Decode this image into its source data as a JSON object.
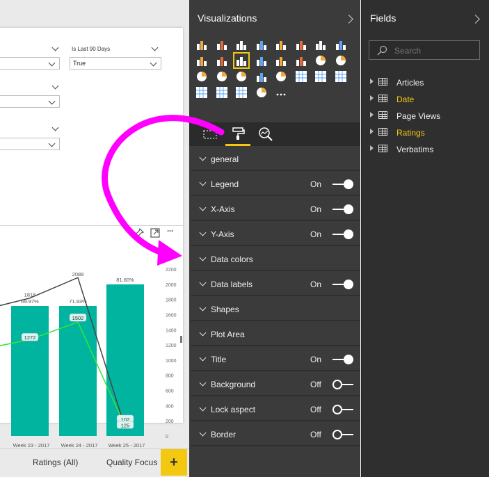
{
  "canvas": {
    "slicers": [
      {
        "label": "",
        "value": ""
      },
      {
        "label": "Is Last 90 Days",
        "value": "True"
      },
      {
        "label": "",
        "value": ""
      },
      {
        "label": "",
        "value": ""
      }
    ],
    "header_icons": [
      "pin-icon",
      "focus-mode-icon",
      "more-options-icon"
    ],
    "more_glyph": "···"
  },
  "chart_data": {
    "type": "bar",
    "categories": [
      "Week 23 - 2017",
      "Week 24 - 2017",
      "Week 25 - 2017"
    ],
    "series": [
      {
        "kind": "bar",
        "values": [
          1818,
          2088,
          102
        ],
        "data_labels": [
          "69.97%",
          "71.93%",
          "81.60%"
        ],
        "color": "#00b4a0"
      },
      {
        "kind": "line",
        "values": [
          1818,
          2088,
          102
        ],
        "data_labels": [
          "1818",
          "2088",
          "102"
        ],
        "color": "#444444"
      },
      {
        "kind": "line",
        "values": [
          1272,
          1502,
          125
        ],
        "data_labels": [
          "1272",
          "1502",
          "125"
        ],
        "color": "#33e833"
      }
    ],
    "y_axis": {
      "min": 0,
      "max": 2200,
      "ticks": [
        "2200",
        "2000",
        "1800",
        "1600",
        "1400",
        "1200",
        "1000",
        "800",
        "600",
        "400",
        "200",
        "0"
      ]
    }
  },
  "tabs": [
    "Ratings (All)",
    "Quality Focus"
  ],
  "add_page_label": "+",
  "visualizations": {
    "title": "Visualizations",
    "icons": [
      "stacked-bar-icon",
      "stacked-column-icon",
      "clustered-bar-icon",
      "clustered-column-icon",
      "100-bar-icon",
      "100-column-icon",
      "line-chart-icon",
      "area-chart-icon",
      "stacked-area-icon",
      "line-column-icon",
      "line-clustered-column-icon",
      "ribbon-chart-icon",
      "waterfall-icon",
      "scatter-icon",
      "pie-icon",
      "donut-icon",
      "treemap-icon",
      "map-icon",
      "filled-map-icon",
      "funnel-icon",
      "gauge-icon",
      "card-icon",
      "multi-row-card-icon",
      "kpi-icon",
      "slicer-icon",
      "table-icon",
      "matrix-icon",
      "globe-icon",
      "more-visuals-icon"
    ],
    "tools": [
      "fields-tool-icon",
      "format-paint-roller-icon",
      "analytics-icon"
    ],
    "properties": [
      {
        "label": "general",
        "state": ""
      },
      {
        "label": "Legend",
        "state": "On"
      },
      {
        "label": "X-Axis",
        "state": "On"
      },
      {
        "label": "Y-Axis",
        "state": "On"
      },
      {
        "label": "Data colors",
        "state": ""
      },
      {
        "label": "Data labels",
        "state": "On"
      },
      {
        "label": "Shapes",
        "state": ""
      },
      {
        "label": "Plot Area",
        "state": ""
      },
      {
        "label": "Title",
        "state": "On"
      },
      {
        "label": "Background",
        "state": "Off"
      },
      {
        "label": "Lock aspect",
        "state": "Off"
      },
      {
        "label": "Border",
        "state": "Off"
      }
    ]
  },
  "fields": {
    "title": "Fields",
    "search_placeholder": "Search",
    "items": [
      {
        "name": "Articles",
        "highlighted": false
      },
      {
        "name": "Date",
        "highlighted": true
      },
      {
        "name": "Page Views",
        "highlighted": false
      },
      {
        "name": "Ratings",
        "highlighted": true
      },
      {
        "name": "Verbatims",
        "highlighted": false
      }
    ]
  },
  "colors": {
    "accent": "#f2c811",
    "annotation_arrow": "#ff00ff",
    "bar": "#00b4a0",
    "pane_dark": "#3b3b3b"
  }
}
